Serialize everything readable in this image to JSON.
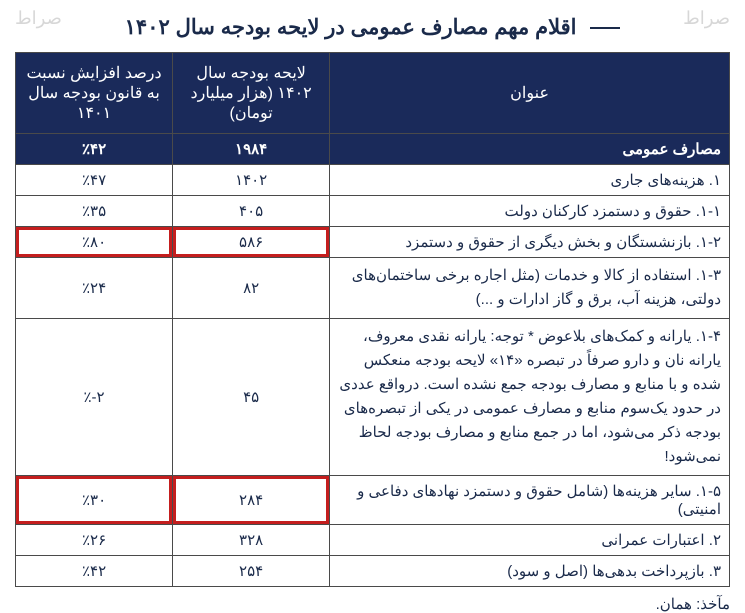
{
  "watermark": "صراط",
  "title": "اقلام مهم مصارف عمومی در لایحه بودجه سال ۱۴۰۲",
  "columns": {
    "title_header": "عنوان",
    "value_header": "لایحه بودجه سال ۱۴۰۲ (هزار میلیارد تومان)",
    "pct_header": "درصد افزایش نسبت به قانون بودجه سال ۱۴۰۱"
  },
  "section": {
    "label": "مصارف عمومی",
    "value": "۱۹۸۴",
    "pct": "٪۴۲"
  },
  "rows": [
    {
      "title": "۱. هزینه‌های جاری",
      "value": "۱۴۰۲",
      "pct": "٪۴۷",
      "highlight": false
    },
    {
      "title": "۱-۱. حقوق و دستمزد کارکنان دولت",
      "value": "۴۰۵",
      "pct": "٪۳۵",
      "highlight": false
    },
    {
      "title": "۱-۲. بازنشستگان و بخش دیگری از حقوق و دستمزد",
      "value": "۵۸۶",
      "pct": "٪۸۰",
      "highlight": true
    },
    {
      "title": "۱-۳. استفاده از کالا و خدمات (مثل اجاره برخی ساختمان‌های دولتی، هزینه آب، برق و گاز ادارات و ...)",
      "value": "۸۲",
      "pct": "٪۲۴",
      "highlight": false,
      "multiline": true
    },
    {
      "title": "۱-۴. یارانه و کمک‌های بلاعوض\n* توجه: یارانه نقدی معروف، یارانه نان و دارو صرفاً در تبصره «۱۴» لایحه بودجه منعکس شده و با منابع و مصارف بودجه جمع نشده است. درواقع عددی در حدود یک‌سوم منابع و مصارف عمومی در یکی از تبصره‌های بودجه ذکر می‌شود، اما در جمع منابع و مصارف بودجه لحاظ نمی‌شود!",
      "value": "۴۵",
      "pct": "٪-۲",
      "highlight": false,
      "multiline": true
    },
    {
      "title": "۱-۵. سایر هزینه‌ها (شامل حقوق و دستمزد نهادهای دفاعی و امنیتی)",
      "value": "۲۸۴",
      "pct": "٪۳۰",
      "highlight": true
    },
    {
      "title": "۲. اعتبارات عمرانی",
      "value": "۳۲۸",
      "pct": "٪۲۶",
      "highlight": false
    },
    {
      "title": "۳. بازپرداخت بدهی‌ها (اصل و سود)",
      "value": "۲۵۴",
      "pct": "٪۴۲",
      "highlight": false
    }
  ],
  "source": "مآخذ: همان.",
  "styling": {
    "header_bg": "#1a2a5a",
    "header_fg": "#ffffff",
    "text_color": "#1a2a4a",
    "border_color": "#4a4a4a",
    "highlight_border": "#c41e1e",
    "background": "#ffffff",
    "title_fontsize": 21,
    "cell_fontsize": 15,
    "header_fontsize": 16
  }
}
